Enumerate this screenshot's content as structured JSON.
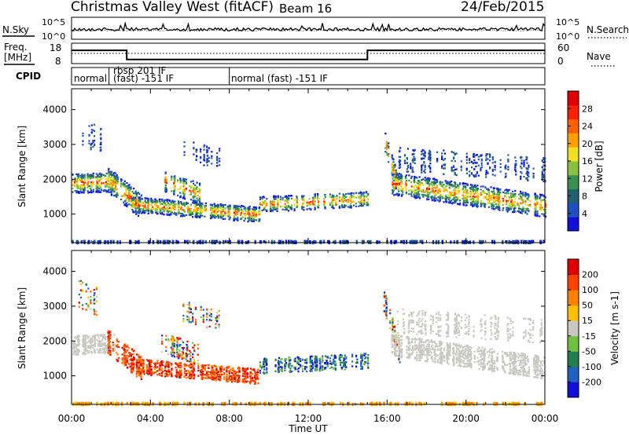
{
  "header": {
    "title": "Christmas Valley West (fitACF)",
    "beam": "Beam 16",
    "date": "24/Feb/2015"
  },
  "noise_panel": {
    "left_label": "N.Sky",
    "left_ticks": [
      "10^5",
      "10^0"
    ],
    "right_ticks": [
      "10^5",
      "10^0"
    ],
    "right_label": "N.Search"
  },
  "freq_panel": {
    "left_label_1": "Freq.",
    "left_label_2": "[MHz]",
    "left_ticks": [
      "18",
      "8"
    ],
    "right_ticks": [
      "60",
      "0"
    ],
    "right_label": "Nave"
  },
  "cpid": {
    "label": "CPID",
    "segments": [
      {
        "text": "normal",
        "start_ut": 0.0
      },
      {
        "text": "rbsp 201 IF",
        "start_ut": 1.9
      },
      {
        "text": "(fast) -151 IF",
        "start_ut": 1.9
      },
      {
        "text": "normal (fast) -151 IF",
        "start_ut": 8.0
      }
    ]
  },
  "x_axis": {
    "label": "Time UT",
    "ticks": [
      "00:00",
      "04:00",
      "08:00",
      "12:00",
      "16:00",
      "20:00",
      "00:00"
    ],
    "tick_hours": [
      0,
      4,
      8,
      12,
      16,
      20,
      24
    ],
    "range_hours": [
      0,
      24
    ]
  },
  "chart_data": [
    {
      "type": "line",
      "name": "noise",
      "x_range": [
        0,
        24
      ],
      "series_sky_level": 0.45,
      "series_search_level": 0.4
    },
    {
      "type": "line",
      "name": "frequency",
      "x_hours": [
        0,
        2.8,
        2.8,
        15.0,
        15.0,
        24
      ],
      "freq_mhz": [
        14.5,
        14.5,
        10.0,
        10.0,
        14.5,
        14.5
      ],
      "freq_range": [
        8,
        18
      ],
      "nave_level": 0.5,
      "nave_range": [
        0,
        60
      ]
    },
    {
      "type": "heatmap",
      "name": "power",
      "ylabel": "Slant Range [km]",
      "yticks": [
        "4000",
        "3000",
        "2000",
        "1000"
      ],
      "ytick_values": [
        4000,
        3000,
        2000,
        1000
      ],
      "ylim": [
        180,
        4600
      ],
      "colorbar_label": "Power [dB]",
      "colorbar_ticks": [
        "28",
        "24",
        "20",
        "16",
        "12",
        "8",
        "4"
      ],
      "colorbar_range": [
        0,
        32
      ],
      "colorbar_colors": [
        "#1010d8",
        "#2050c0",
        "#206070",
        "#3a9050",
        "#88c040",
        "#f0e020",
        "#ffa000",
        "#ff6000",
        "#ff2000",
        "#e00000"
      ]
    },
    {
      "type": "heatmap",
      "name": "velocity",
      "ylabel": "Slant Range [km]",
      "yticks": [
        "4000",
        "3000",
        "2000",
        "1000"
      ],
      "ytick_values": [
        4000,
        3000,
        2000,
        1000
      ],
      "ylim": [
        180,
        4600
      ],
      "colorbar_label": "Velocity [m s-1]",
      "colorbar_ticks": [
        "200",
        "100",
        "50",
        "15",
        "-15",
        "-50",
        "-100",
        "-200"
      ],
      "colorbar_colors": [
        "#1010d8",
        "#2060c0",
        "#208050",
        "#70c040",
        "#c8c8c0",
        "#ffc000",
        "#ff8000",
        "#ff4000",
        "#e00000"
      ]
    }
  ]
}
